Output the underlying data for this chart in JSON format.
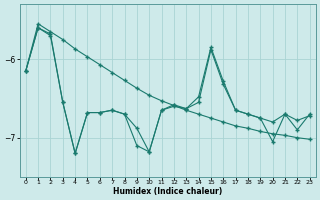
{
  "bg_color": "#ceeaea",
  "line_color": "#1a7a6e",
  "grid_color": "#aad4d4",
  "xlabel": "Humidex (Indice chaleur)",
  "ylim": [
    -7.5,
    -5.3
  ],
  "xlim": [
    -0.5,
    23.5
  ],
  "yticks": [
    -7,
    -6
  ],
  "xticks": [
    0,
    1,
    2,
    3,
    4,
    5,
    6,
    7,
    8,
    9,
    10,
    11,
    12,
    13,
    14,
    15,
    16,
    17,
    18,
    19,
    20,
    21,
    22,
    23
  ],
  "line1_x": [
    0,
    1,
    2,
    3,
    4,
    5,
    6,
    7,
    8,
    9,
    10,
    11,
    12,
    13,
    14,
    15,
    16,
    17,
    18,
    19,
    20,
    21,
    22,
    23
  ],
  "line1_y": [
    -6.15,
    -5.55,
    -5.65,
    -5.75,
    -5.87,
    -5.97,
    -6.07,
    -6.17,
    -6.27,
    -6.37,
    -6.46,
    -6.53,
    -6.59,
    -6.65,
    -6.7,
    -6.75,
    -6.8,
    -6.85,
    -6.88,
    -6.92,
    -6.95,
    -6.97,
    -7.0,
    -7.02
  ],
  "line2_x": [
    0,
    1,
    2,
    3,
    4,
    5,
    6,
    7,
    8,
    9,
    10,
    11,
    12,
    13,
    14,
    15,
    16,
    17,
    18,
    19,
    20,
    21,
    22,
    23
  ],
  "line2_y": [
    -6.15,
    -5.6,
    -5.68,
    -6.55,
    -7.2,
    -6.68,
    -6.68,
    -6.65,
    -6.7,
    -6.88,
    -7.18,
    -6.65,
    -6.6,
    -6.63,
    -6.55,
    -5.88,
    -6.32,
    -6.65,
    -6.7,
    -6.75,
    -6.8,
    -6.7,
    -6.78,
    -6.72
  ],
  "line3_x": [
    0,
    1,
    2,
    3,
    4,
    5,
    6,
    7,
    8,
    9,
    10,
    11,
    12,
    13,
    14,
    15,
    16,
    17,
    18,
    19,
    20,
    21,
    22,
    23
  ],
  "line3_y": [
    -6.15,
    -5.6,
    -5.7,
    -6.55,
    -7.2,
    -6.68,
    -6.68,
    -6.65,
    -6.7,
    -7.1,
    -7.18,
    -6.65,
    -6.58,
    -6.63,
    -6.48,
    -5.85,
    -6.28,
    -6.65,
    -6.7,
    -6.75,
    -7.05,
    -6.7,
    -6.9,
    -6.7
  ]
}
